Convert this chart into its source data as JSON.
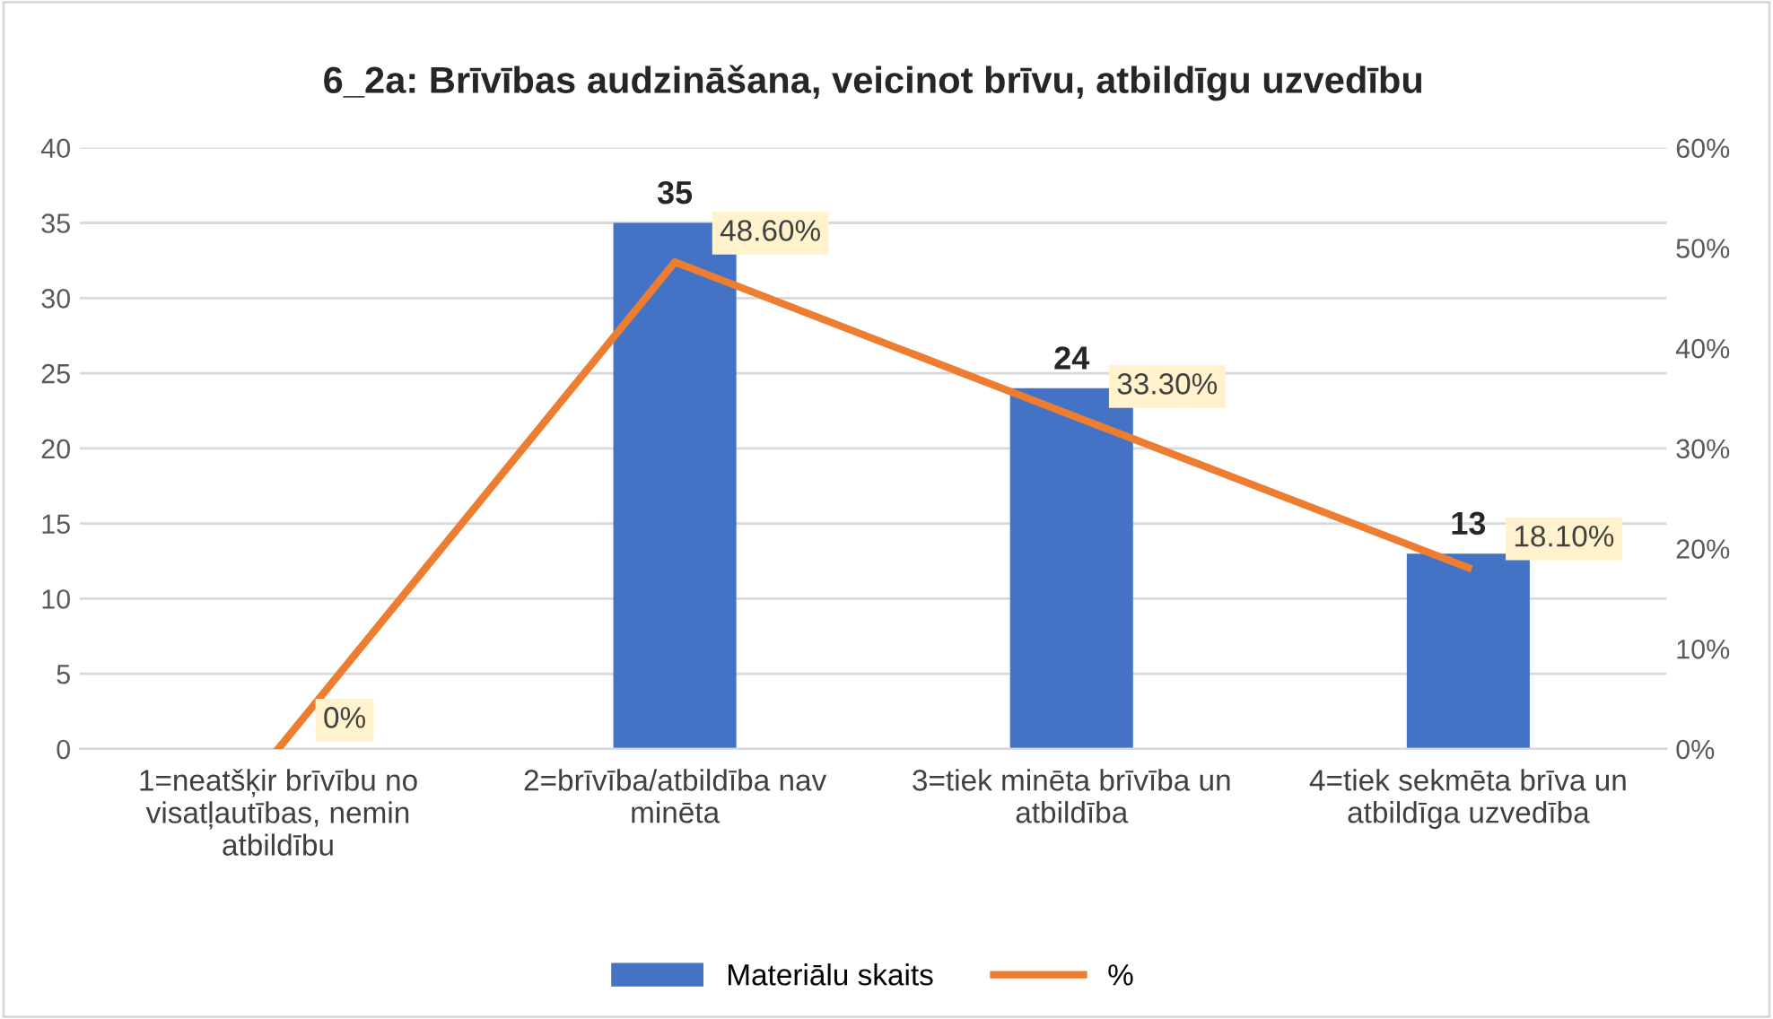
{
  "chart_data": {
    "type": "bar",
    "title": "6_2a: Brīvības audzināšana, veicinot brīvu, atbildīgu uzvedību",
    "categories": [
      "1=neatšķir brīvību no\nvisatļautības, nemin\natbildību",
      "2=brīvība/atbildība nav\nminēta",
      "3=tiek minēta brīvība un\natbildība",
      "4=tiek sekmēta brīva un\natbildīga uzvedība"
    ],
    "series": [
      {
        "name": "Materiālu skaits",
        "color": "#4472c4",
        "values": [
          0,
          35,
          24,
          13
        ],
        "value_labels": [
          null,
          "35",
          "24",
          "13"
        ]
      },
      {
        "name": "%",
        "type": "line",
        "axis": "y2",
        "color": "#ed7d31",
        "values": [
          0,
          48.6,
          33.3,
          18.1
        ],
        "value_labels": [
          "0%",
          "48.60%",
          "33.30%",
          "18.10%"
        ]
      }
    ],
    "ylim": [
      0,
      40
    ],
    "yticks": [
      0,
      5,
      10,
      15,
      20,
      25,
      30,
      35,
      40
    ],
    "y2lim": [
      0,
      60
    ],
    "y2ticks": [
      {
        "value": 0,
        "label": "0%"
      },
      {
        "value": 10,
        "label": "10%"
      },
      {
        "value": 20,
        "label": "20%"
      },
      {
        "value": 30,
        "label": "30%"
      },
      {
        "value": 40,
        "label": "40%"
      },
      {
        "value": 50,
        "label": "50%"
      },
      {
        "value": 60,
        "label": "60%"
      }
    ],
    "grid": "y",
    "legend": "bottom",
    "marker": "none",
    "line_style": "solid"
  }
}
